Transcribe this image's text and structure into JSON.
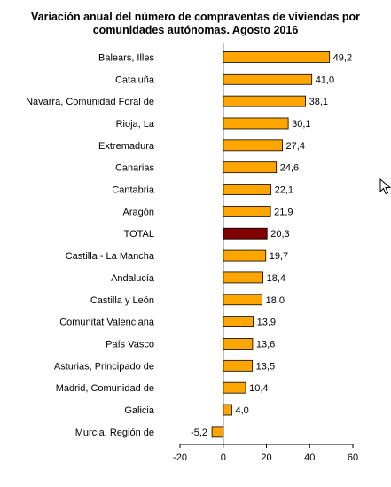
{
  "title": {
    "line1": "Variación anual del número de compraventas de viviendas por",
    "line2": "comunidades autónomas. Agosto 2016"
  },
  "colors": {
    "bar": "#ffa500",
    "highlight": "#800000",
    "border": "#000000"
  },
  "chart_data": {
    "type": "bar",
    "orientation": "horizontal",
    "categories": [
      "Balears, Illes",
      "Cataluña",
      "Navarra, Comunidad Foral de",
      "Rioja, La",
      "Extremadura",
      "Canarias",
      "Cantabria",
      "Aragón",
      "TOTAL",
      "Castilla - La Mancha",
      "Andalucía",
      "Castilla y León",
      "Comunitat Valenciana",
      "País Vasco",
      "Asturias, Principado de",
      "Madrid, Comunidad de",
      "Galicia",
      "Murcia, Región de"
    ],
    "values": [
      49.2,
      41.0,
      38.1,
      30.1,
      27.4,
      24.6,
      22.1,
      21.9,
      20.3,
      19.7,
      18.4,
      18.0,
      13.9,
      13.6,
      13.5,
      10.4,
      4.0,
      -5.2
    ],
    "value_labels": [
      "49,2",
      "41,0",
      "38,1",
      "30,1",
      "27,4",
      "24,6",
      "22,1",
      "21,9",
      "20,3",
      "19,7",
      "18,4",
      "18,0",
      "13,9",
      "13,6",
      "13,5",
      "10,4",
      "4,0",
      "-5,2"
    ],
    "highlight_category": "TOTAL",
    "xlim": [
      -20,
      60
    ],
    "xticks": [
      -20,
      0,
      20,
      40,
      60
    ],
    "title": "Variación anual del número de compraventas de viviendas por comunidades autónomas. Agosto 2016",
    "xlabel": "",
    "ylabel": "",
    "grid": false,
    "legend": "none"
  },
  "cursor_icon": "mouse-pointer-icon"
}
